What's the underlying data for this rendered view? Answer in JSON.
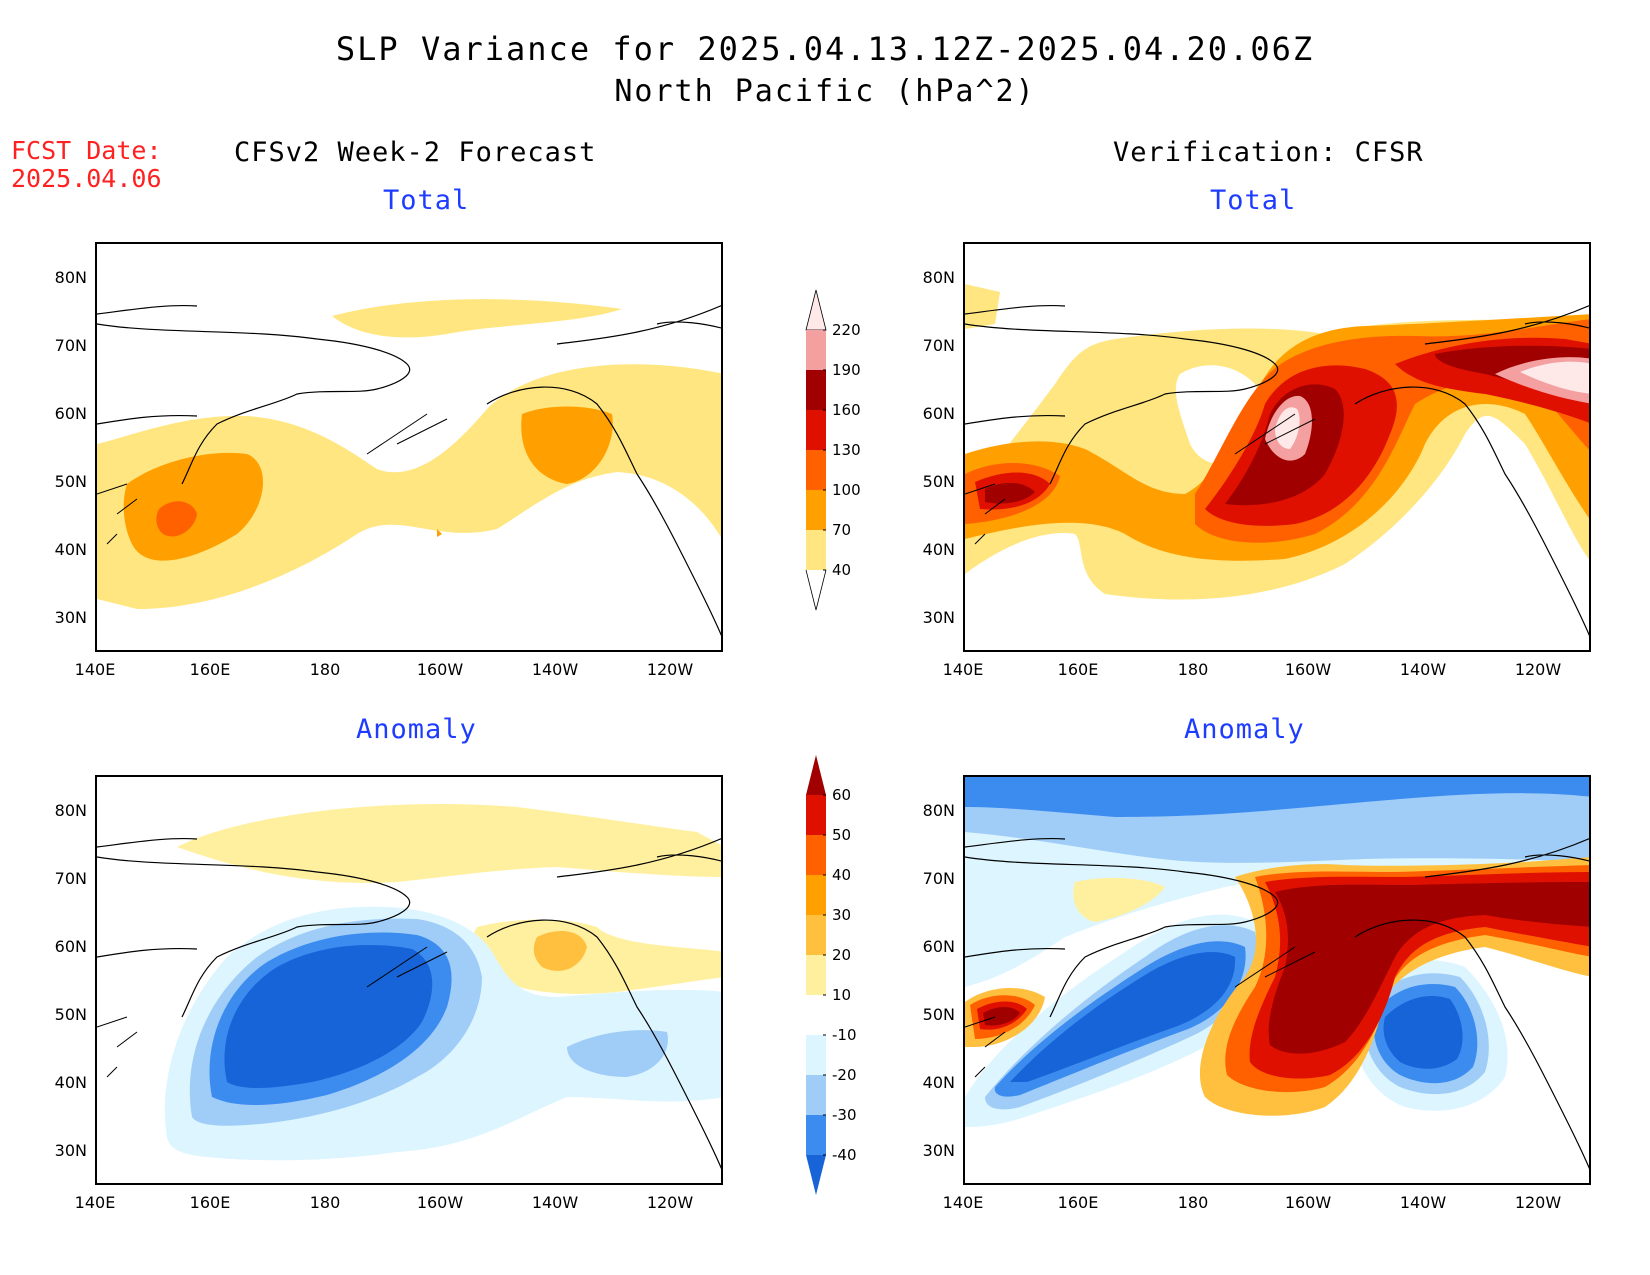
{
  "title": {
    "line1": "SLP Variance for 2025.04.13.12Z-2025.04.20.06Z",
    "line2": "North Pacific (hPa^2)"
  },
  "forecast_date": {
    "label": "FCST Date:",
    "value": "2025.04.06"
  },
  "columns": {
    "left": "CFSv2 Week-2 Forecast",
    "right": "Verification: CFSR"
  },
  "panels": [
    {
      "id": "fcst-total",
      "subtitle": "Total"
    },
    {
      "id": "verif-total",
      "subtitle": "Total"
    },
    {
      "id": "fcst-anomaly",
      "subtitle": "Anomaly"
    },
    {
      "id": "verif-anomaly",
      "subtitle": "Anomaly"
    }
  ],
  "axes": {
    "lat_labels": [
      "80N",
      "70N",
      "60N",
      "50N",
      "40N",
      "30N"
    ],
    "lon_labels": [
      "140E",
      "160E",
      "180",
      "160W",
      "140W",
      "120W"
    ]
  },
  "colorbars": {
    "total": {
      "levels": [
        "40",
        "70",
        "100",
        "130",
        "160",
        "190",
        "220"
      ],
      "colors": [
        "#ffe680",
        "#ffa000",
        "#ff6000",
        "#e01000",
        "#a00000",
        "#f4a0a0",
        "#ffe8e8"
      ]
    },
    "anomaly": {
      "levels": [
        "-40",
        "-30",
        "-20",
        "-10",
        "10",
        "20",
        "30",
        "40",
        "50",
        "60"
      ],
      "colors": [
        "#1664d8",
        "#3c8cf0",
        "#a0cdf8",
        "#dcf5ff",
        "#ffffff",
        "#fff0a0",
        "#ffc040",
        "#ffa000",
        "#ff6000",
        "#e01000",
        "#a00000"
      ]
    }
  }
}
